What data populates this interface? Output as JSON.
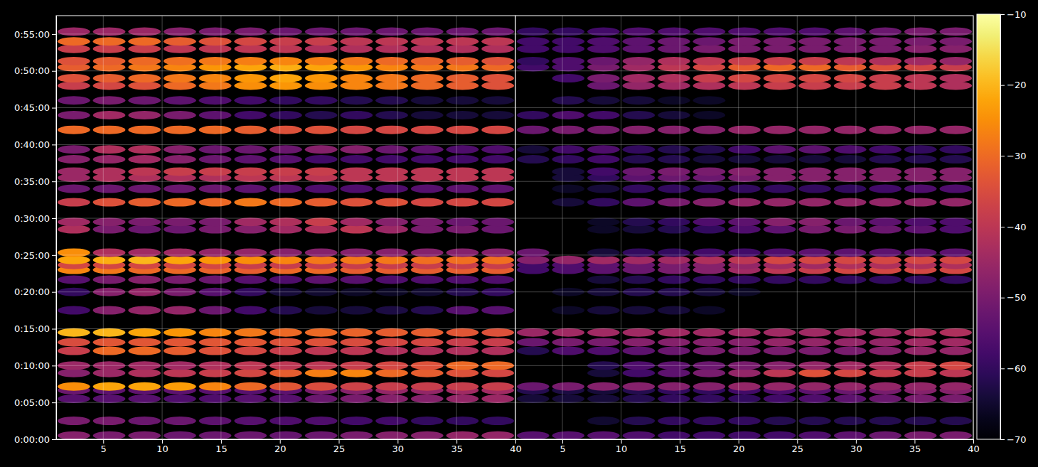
{
  "chart_data": {
    "type": "heatmap",
    "grid": true,
    "xlim": [
      1,
      40
    ],
    "xticks": [
      5,
      10,
      15,
      20,
      25,
      30,
      35,
      40
    ],
    "ylim": [
      0,
      3450
    ],
    "yticks": [
      {
        "value": 0,
        "label": "0:00:00"
      },
      {
        "value": 300,
        "label": "0:05:00"
      },
      {
        "value": 600,
        "label": "0:10:00"
      },
      {
        "value": 900,
        "label": "0:15:00"
      },
      {
        "value": 1200,
        "label": "0:20:00"
      },
      {
        "value": 1500,
        "label": "0:25:00"
      },
      {
        "value": 1800,
        "label": "0:30:00"
      },
      {
        "value": 2100,
        "label": "0:35:00"
      },
      {
        "value": 2400,
        "label": "0:40:00"
      },
      {
        "value": 2700,
        "label": "0:45:00"
      },
      {
        "value": 3000,
        "label": "0:50:00"
      },
      {
        "value": 3300,
        "label": "0:55:00"
      }
    ],
    "colorbar": {
      "range": [
        -70,
        -10
      ],
      "ticks": [
        {
          "value": -70,
          "label": "−70"
        },
        {
          "value": -60,
          "label": "−60"
        },
        {
          "value": -50,
          "label": "−50"
        },
        {
          "value": -40,
          "label": "−40"
        },
        {
          "value": -30,
          "label": "−30"
        },
        {
          "value": -20,
          "label": "−20"
        },
        {
          "value": -10,
          "label": "−10"
        }
      ]
    },
    "x": [
      2.5,
      5.5,
      8.5,
      11.5,
      14.5,
      17.5,
      20.5,
      23.5,
      26.5,
      29.5,
      32.5,
      35.5,
      38.5
    ],
    "y": [
      30,
      150,
      330,
      400,
      430,
      540,
      600,
      720,
      790,
      870,
      1050,
      1200,
      1300,
      1380,
      1420,
      1460,
      1520,
      1710,
      1770,
      1930,
      2040,
      2130,
      2180,
      2280,
      2360,
      2520,
      2640,
      2760,
      2880,
      2940,
      3030,
      3080,
      3180,
      3240,
      3320
    ],
    "panels": [
      {
        "values": [
          [
            -48,
            -50,
            -50,
            -52,
            -52,
            -52,
            -53,
            -52,
            -50,
            -48,
            -48,
            -46,
            -46
          ],
          [
            -50,
            -50,
            -52,
            -52,
            -54,
            -55,
            -56,
            -56,
            -58,
            -58,
            -60,
            -60,
            -60
          ],
          [
            -55,
            -55,
            -55,
            -56,
            -56,
            -55,
            -55,
            -52,
            -50,
            -48,
            -48,
            -46,
            -45
          ],
          [
            -52,
            -54,
            -54,
            -54,
            -55,
            -55,
            -54,
            -50,
            -48,
            -46,
            -46,
            -44,
            -44
          ],
          [
            -25,
            -22,
            -22,
            -23,
            -26,
            -30,
            -33,
            -35,
            -37,
            -38,
            -38,
            -38,
            -38
          ],
          [
            -48,
            -45,
            -42,
            -40,
            -38,
            -36,
            -32,
            -27,
            -26,
            -30,
            -32,
            -34,
            -36
          ],
          [
            -45,
            -45,
            -44,
            -44,
            -42,
            -40,
            -40,
            -40,
            -38,
            -36,
            -34,
            -30,
            -30
          ],
          [
            -38,
            -30,
            -30,
            -32,
            -34,
            -36,
            -38,
            -40,
            -40,
            -42,
            -42,
            -42,
            -42
          ],
          [
            -35,
            -33,
            -33,
            -33,
            -33,
            -33,
            -34,
            -34,
            -35,
            -36,
            -36,
            -38,
            -38
          ],
          [
            -20,
            -20,
            -22,
            -24,
            -26,
            -28,
            -30,
            -30,
            -31,
            -32,
            -32,
            -33,
            -34
          ],
          [
            -58,
            -48,
            -46,
            -46,
            -52,
            -58,
            -62,
            -64,
            -64,
            -63,
            -62,
            -55,
            -55
          ],
          [
            -60,
            -48,
            -46,
            -50,
            -55,
            -60,
            -64,
            -65,
            -66,
            -66,
            -65,
            -62,
            -60
          ],
          [
            -55,
            -50,
            -48,
            -50,
            -52,
            -55,
            -56,
            -54,
            -55,
            -56,
            -56,
            -56,
            -56
          ],
          [
            -26,
            -28,
            -30,
            -30,
            -31,
            -32,
            -30,
            -30,
            -32,
            -32,
            -32,
            -32,
            -32
          ],
          [
            -36,
            -36,
            -36,
            -36,
            -36,
            -38,
            -38,
            -38,
            -38,
            -38,
            -38,
            -38,
            -38
          ],
          [
            -22,
            -21,
            -20,
            -22,
            -24,
            -25,
            -26,
            -28,
            -28,
            -28,
            -29,
            -29,
            -29
          ],
          [
            -25,
            -42,
            -44,
            -44,
            -46,
            -46,
            -48,
            -48,
            -48,
            -48,
            -48,
            -48,
            -48
          ],
          [
            -42,
            -50,
            -52,
            -52,
            -50,
            -48,
            -44,
            -42,
            -40,
            -45,
            -50,
            -50,
            -52
          ],
          [
            -44,
            -48,
            -50,
            -50,
            -50,
            -44,
            -42,
            -38,
            -44,
            -48,
            -50,
            -52,
            -52
          ],
          [
            -38,
            -34,
            -32,
            -30,
            -30,
            -28,
            -30,
            -32,
            -34,
            -34,
            -36,
            -36,
            -36
          ],
          [
            -52,
            -52,
            -52,
            -52,
            -52,
            -54,
            -55,
            -56,
            -56,
            -56,
            -55,
            -54,
            -54
          ],
          [
            -45,
            -42,
            -42,
            -42,
            -42,
            -40,
            -40,
            -40,
            -40,
            -40,
            -40,
            -40,
            -40
          ],
          [
            -45,
            -42,
            -40,
            -38,
            -38,
            -38,
            -38,
            -38,
            -40,
            -40,
            -40,
            -40,
            -40
          ],
          [
            -48,
            -46,
            -44,
            -48,
            -52,
            -54,
            -55,
            -58,
            -58,
            -58,
            -58,
            -58,
            -58
          ],
          [
            -50,
            -42,
            -42,
            -48,
            -52,
            -52,
            -52,
            -48,
            -48,
            -52,
            -54,
            -56,
            -56
          ],
          [
            -30,
            -30,
            -30,
            -30,
            -30,
            -32,
            -34,
            -34,
            -36,
            -36,
            -36,
            -36,
            -36
          ],
          [
            -50,
            -44,
            -46,
            -50,
            -54,
            -58,
            -60,
            -62,
            -60,
            -62,
            -64,
            -64,
            -64
          ],
          [
            -52,
            -50,
            -52,
            -54,
            -56,
            -58,
            -60,
            -60,
            -62,
            -62,
            -64,
            -64,
            -64
          ],
          [
            -38,
            -36,
            -34,
            -30,
            -28,
            -25,
            -24,
            -25,
            -26,
            -28,
            -30,
            -32,
            -34
          ],
          [
            -34,
            -32,
            -30,
            -28,
            -26,
            -24,
            -22,
            -24,
            -26,
            -28,
            -30,
            -32,
            -34
          ],
          [
            -32,
            -30,
            -28,
            -26,
            -24,
            -22,
            -21,
            -22,
            -24,
            -26,
            -28,
            -28,
            -30
          ],
          [
            -34,
            -32,
            -30,
            -29,
            -28,
            -27,
            -26,
            -27,
            -28,
            -30,
            -31,
            -32,
            -34
          ],
          [
            -38,
            -38,
            -38,
            -40,
            -40,
            -40,
            -40,
            -42,
            -42,
            -42,
            -42,
            -42,
            -42
          ],
          [
            -30,
            -30,
            -30,
            -32,
            -34,
            -36,
            -38,
            -38,
            -40,
            -40,
            -40,
            -40,
            -40
          ],
          [
            -45,
            -45,
            -45,
            -48,
            -50,
            -50,
            -52,
            -52,
            -52,
            -52,
            -52,
            -52,
            -52
          ]
        ]
      },
      {
        "values": [
          [
            -55,
            -55,
            -55,
            -56,
            -58,
            -58,
            -58,
            -58,
            -56,
            -54,
            -52,
            -50,
            -50
          ],
          [
            null,
            null,
            -65,
            -62,
            -60,
            -60,
            -60,
            -62,
            -62,
            -62,
            -62,
            -62,
            -62
          ],
          [
            -64,
            -64,
            -64,
            -62,
            -60,
            -60,
            -60,
            -58,
            -56,
            -54,
            -52,
            -50,
            -50
          ],
          [
            -62,
            -63,
            -64,
            -62,
            -60,
            -60,
            -58,
            -56,
            -54,
            -52,
            -50,
            -48,
            -48
          ],
          [
            -52,
            -50,
            -48,
            -48,
            -48,
            -48,
            -46,
            -46,
            -46,
            -46,
            -46,
            -46,
            -46
          ],
          [
            null,
            null,
            -64,
            -58,
            -54,
            -50,
            -46,
            -40,
            -34,
            -36,
            -38,
            -38,
            -40
          ],
          [
            null,
            null,
            -62,
            -56,
            -54,
            -52,
            -50,
            -48,
            -46,
            -44,
            -42,
            -38,
            -36
          ],
          [
            -62,
            -56,
            -56,
            -54,
            -52,
            -50,
            -50,
            -50,
            -50,
            -50,
            -48,
            -46,
            -46
          ],
          [
            -52,
            -50,
            -50,
            -48,
            -48,
            -48,
            -48,
            -46,
            -46,
            -46,
            -46,
            -44,
            -44
          ],
          [
            -45,
            -44,
            -44,
            -44,
            -44,
            -44,
            -44,
            -44,
            -44,
            -44,
            -44,
            -42,
            -42
          ],
          [
            null,
            -66,
            -64,
            -64,
            -64,
            -66,
            null,
            null,
            null,
            null,
            null,
            null,
            null
          ],
          [
            null,
            -66,
            -64,
            -62,
            -62,
            -64,
            -66,
            null,
            null,
            null,
            null,
            null,
            null
          ],
          [
            null,
            null,
            -64,
            -62,
            -60,
            -60,
            -60,
            -60,
            -60,
            -60,
            -60,
            -60,
            -60
          ],
          [
            -58,
            -56,
            -54,
            -52,
            -50,
            -48,
            -44,
            -40,
            -38,
            -36,
            -36,
            -36,
            -36
          ],
          [
            -58,
            -56,
            -54,
            -52,
            -50,
            -48,
            -46,
            -44,
            -44,
            -42,
            -42,
            -42,
            -42
          ],
          [
            -48,
            -46,
            -44,
            -44,
            -44,
            -42,
            -40,
            -36,
            -36,
            -36,
            -36,
            -36,
            -36
          ],
          [
            -52,
            null,
            -64,
            -60,
            -60,
            -58,
            -58,
            -56,
            -54,
            -54,
            -54,
            -54,
            -54
          ],
          [
            null,
            null,
            -66,
            -64,
            -62,
            -60,
            -56,
            -54,
            -50,
            -50,
            -52,
            -54,
            -56
          ],
          [
            null,
            null,
            -66,
            -62,
            -60,
            -56,
            -54,
            -48,
            -48,
            -52,
            -54,
            -56,
            -56
          ],
          [
            null,
            -64,
            -60,
            -54,
            -50,
            -48,
            -46,
            -46,
            -46,
            -46,
            -46,
            -46,
            -46
          ],
          [
            null,
            -66,
            -64,
            -60,
            -60,
            -60,
            -60,
            -60,
            -60,
            -60,
            -58,
            -56,
            -56
          ],
          [
            null,
            -64,
            -60,
            -54,
            -52,
            -52,
            -50,
            -48,
            -48,
            -48,
            -48,
            -48,
            -48
          ],
          [
            null,
            -64,
            -58,
            -52,
            -50,
            -50,
            -48,
            -48,
            -48,
            -48,
            -48,
            -48,
            -48
          ],
          [
            -62,
            -60,
            -58,
            -62,
            -62,
            -64,
            -64,
            -64,
            -64,
            -64,
            -62,
            -62,
            -62
          ],
          [
            -64,
            -58,
            -56,
            -60,
            -62,
            -62,
            -58,
            -54,
            -54,
            -56,
            -58,
            -60,
            -60
          ],
          [
            -52,
            -50,
            -50,
            -48,
            -48,
            -48,
            -46,
            -46,
            -46,
            -46,
            -46,
            -46,
            -46
          ],
          [
            -60,
            -56,
            -58,
            -62,
            -64,
            -66,
            null,
            null,
            null,
            null,
            null,
            null,
            null
          ],
          [
            null,
            -62,
            -64,
            -64,
            -66,
            -66,
            null,
            null,
            null,
            null,
            null,
            null,
            null
          ],
          [
            null,
            null,
            -52,
            -46,
            -44,
            -42,
            -40,
            -38,
            -38,
            -38,
            -38,
            -40,
            -42
          ],
          [
            null,
            -58,
            -50,
            -44,
            -42,
            -38,
            -36,
            -36,
            -36,
            -36,
            -38,
            -40,
            -42
          ],
          [
            -58,
            -56,
            -50,
            -44,
            -40,
            -36,
            -32,
            -30,
            -30,
            -32,
            -34,
            -36,
            -38
          ],
          [
            -60,
            -56,
            -52,
            -46,
            -42,
            -40,
            -38,
            -38,
            -38,
            -40,
            -42,
            -44,
            -46
          ],
          [
            -58,
            -58,
            -56,
            -54,
            -52,
            -50,
            -50,
            -50,
            -50,
            -50,
            -50,
            -48,
            -48
          ],
          [
            -58,
            -58,
            -56,
            -54,
            -52,
            -52,
            -50,
            -50,
            -50,
            -50,
            -50,
            -50,
            -50
          ],
          [
            -60,
            -60,
            -58,
            -56,
            -56,
            -56,
            -56,
            -56,
            -56,
            -54,
            -52,
            -50,
            -50
          ]
        ]
      }
    ]
  }
}
